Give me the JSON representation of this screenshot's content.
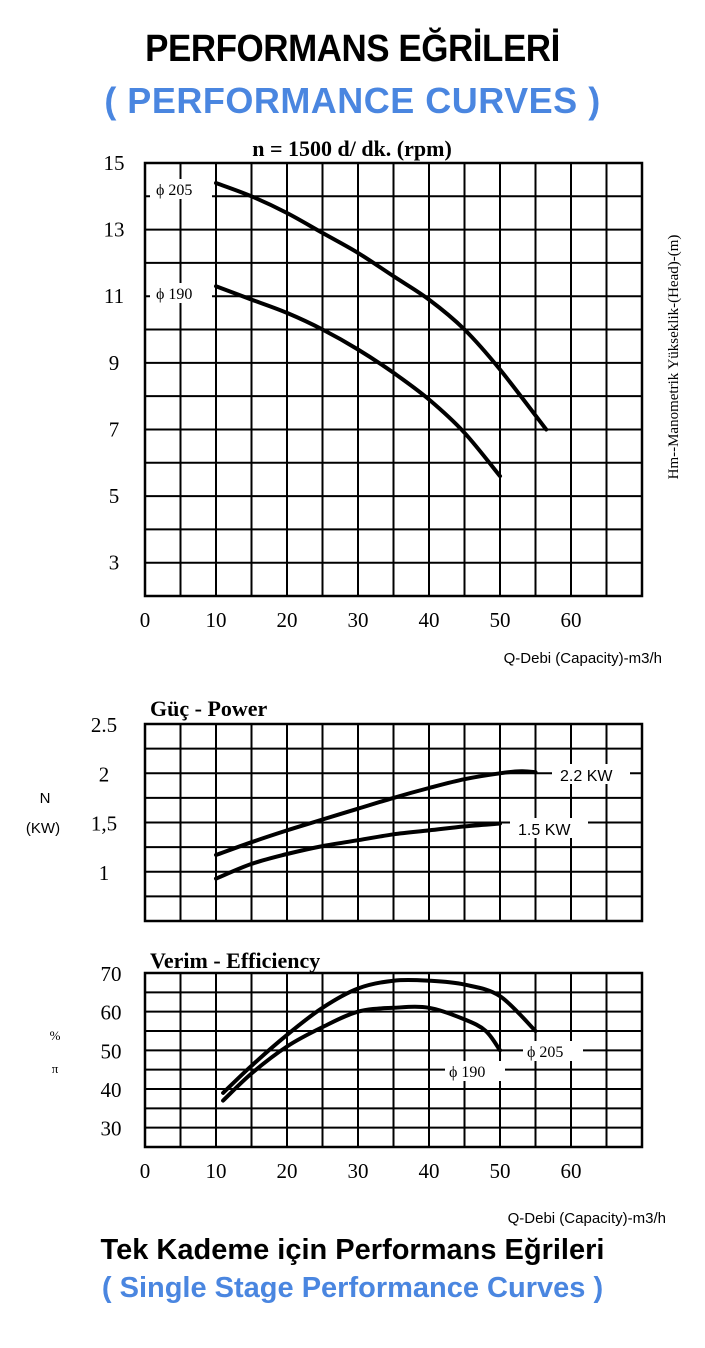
{
  "header": {
    "title": "PERFORMANS EĞRİLERİ",
    "subtitle": "( PERFORMANCE CURVES )"
  },
  "footer": {
    "title": "Tek Kademe için Performans Eğrileri",
    "subtitle": "( Single Stage Performance Curves )"
  },
  "chart_data": [
    {
      "type": "line",
      "title": "n = 1500 d/ dk.  (rpm)",
      "xlabel": "Q-Debi (Capacity)-m3/h",
      "ylabel": "Hm--Manometrik Yükseklik-(Head)-(m)",
      "xlim": [
        0,
        70
      ],
      "ylim": [
        2,
        15
      ],
      "x_ticks": [
        0,
        10,
        20,
        30,
        40,
        50,
        60
      ],
      "y_ticks": [
        3,
        5,
        7,
        9,
        11,
        13,
        15
      ],
      "grid": true,
      "series": [
        {
          "name": "ϕ 205",
          "x": [
            10,
            15,
            20,
            25,
            30,
            35,
            40,
            45,
            50,
            56.5
          ],
          "y": [
            14.4,
            14.0,
            13.5,
            12.9,
            12.3,
            11.6,
            10.9,
            10.0,
            8.8,
            7.0
          ]
        },
        {
          "name": "ϕ 190",
          "x": [
            10,
            15,
            20,
            25,
            30,
            35,
            40,
            45,
            50
          ],
          "y": [
            11.3,
            10.9,
            10.5,
            10.0,
            9.4,
            8.7,
            7.9,
            6.9,
            5.6
          ]
        }
      ]
    },
    {
      "type": "line",
      "title": "Güç - Power",
      "ylabel": "N (KW)",
      "ylabel_line1": "N",
      "ylabel_line2": "(KW)",
      "xlim": [
        0,
        70
      ],
      "ylim": [
        0.5,
        2.5
      ],
      "y_ticks": [
        1,
        1.5,
        2,
        2.5
      ],
      "y_tick_labels": [
        "1",
        "1,5",
        "2",
        "2.5"
      ],
      "grid": true,
      "series": [
        {
          "name": "2.2 KW",
          "x": [
            10,
            15,
            20,
            25,
            30,
            35,
            40,
            45,
            50,
            53,
            55
          ],
          "y": [
            1.17,
            1.3,
            1.42,
            1.53,
            1.64,
            1.75,
            1.85,
            1.94,
            2.0,
            2.02,
            2.01
          ]
        },
        {
          "name": "1.5 KW",
          "x": [
            10,
            15,
            20,
            25,
            30,
            35,
            40,
            45,
            50
          ],
          "y": [
            0.93,
            1.08,
            1.18,
            1.26,
            1.32,
            1.38,
            1.42,
            1.46,
            1.49
          ]
        }
      ]
    },
    {
      "type": "line",
      "title": "Verim - Efficiency",
      "xlabel": "Q-Debi (Capacity)-m3/h",
      "ylabel": "% π",
      "ylabel_line1": "%",
      "ylabel_line2": "π",
      "xlim": [
        0,
        70
      ],
      "ylim": [
        25,
        70
      ],
      "x_ticks": [
        0,
        10,
        20,
        30,
        40,
        50,
        60
      ],
      "y_ticks": [
        30,
        40,
        50,
        60,
        70
      ],
      "grid": true,
      "series": [
        {
          "name": "ϕ 205",
          "x": [
            11,
            15,
            20,
            25,
            30,
            35,
            40,
            45,
            50,
            55
          ],
          "y": [
            39,
            46,
            54,
            61,
            66,
            68,
            68,
            67,
            64,
            55
          ]
        },
        {
          "name": "ϕ 190",
          "x": [
            11,
            15,
            20,
            25,
            30,
            35,
            40,
            45,
            48,
            50
          ],
          "y": [
            37,
            44,
            51,
            56,
            60,
            61,
            61,
            58,
            55,
            50
          ]
        }
      ]
    }
  ]
}
